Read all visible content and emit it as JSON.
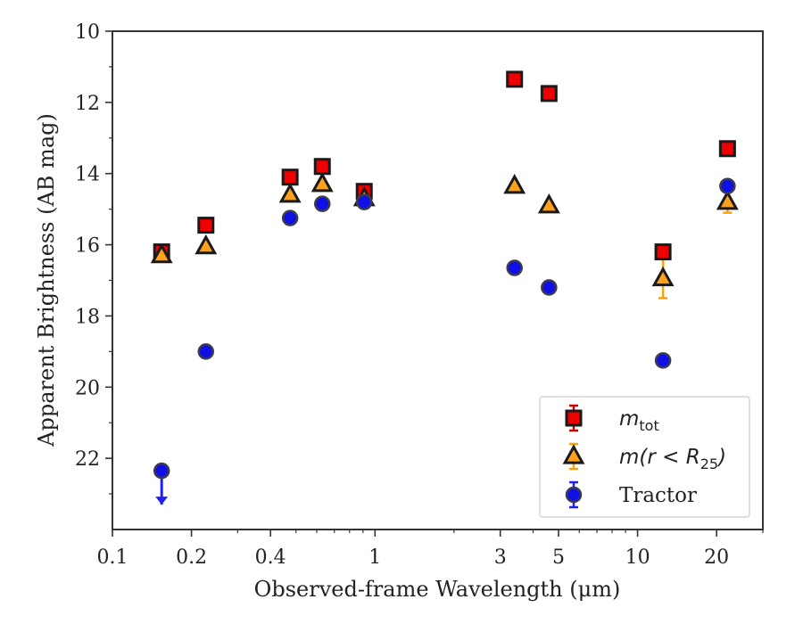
{
  "chart_data": {
    "type": "scatter",
    "title": "",
    "xlabel": "Observed-frame Wavelength (μm)",
    "ylabel": "Apparent Brightness (AB mag)",
    "x_scale": "log",
    "xlim": [
      0.1,
      30
    ],
    "ylim": [
      24,
      10
    ],
    "y_inverted": true,
    "grid": false,
    "legend_position": "lower-right",
    "x_ticks": [
      {
        "value": 0.1,
        "label": "0.1"
      },
      {
        "value": 0.2,
        "label": "0.2"
      },
      {
        "value": 0.4,
        "label": "0.4"
      },
      {
        "value": 1,
        "label": "1"
      },
      {
        "value": 3,
        "label": "3"
      },
      {
        "value": 5,
        "label": "5"
      },
      {
        "value": 10,
        "label": "10"
      },
      {
        "value": 20,
        "label": "20"
      }
    ],
    "y_ticks": [
      {
        "value": 10,
        "label": "10"
      },
      {
        "value": 12,
        "label": "12"
      },
      {
        "value": 14,
        "label": "14"
      },
      {
        "value": 16,
        "label": "16"
      },
      {
        "value": 18,
        "label": "18"
      },
      {
        "value": 20,
        "label": "20"
      },
      {
        "value": 22,
        "label": "22"
      }
    ],
    "series": [
      {
        "name": "m_tot",
        "legend_label": "m",
        "legend_sub": "tot",
        "marker": "square",
        "fill_color": "#ee0000",
        "edge_color": "#1a1a1a",
        "errorbar_color": "#d00000",
        "points": [
          {
            "x": 0.154,
            "y": 16.2,
            "err": 0.08
          },
          {
            "x": 0.227,
            "y": 15.45,
            "err": 0.03
          },
          {
            "x": 0.475,
            "y": 14.1,
            "err": 0.03
          },
          {
            "x": 0.63,
            "y": 13.8,
            "err": 0.03
          },
          {
            "x": 0.91,
            "y": 14.5,
            "err": 0.03
          },
          {
            "x": 3.4,
            "y": 11.35,
            "err": 0.03
          },
          {
            "x": 4.6,
            "y": 11.75,
            "err": 0.03
          },
          {
            "x": 12.5,
            "y": 16.2,
            "err": 0.05
          },
          {
            "x": 22.0,
            "y": 13.3,
            "err": 0.05
          }
        ]
      },
      {
        "name": "m(r < R_25)",
        "legend_label": "m(r < R",
        "legend_sub": "25",
        "legend_tail": ")",
        "marker": "triangle",
        "fill_color": "#ff9f1c",
        "edge_color": "#1a1a1a",
        "errorbar_color": "#f5a30a",
        "points": [
          {
            "x": 0.154,
            "y": 16.3,
            "err": 0.05
          },
          {
            "x": 0.227,
            "y": 16.05,
            "err": 0.03
          },
          {
            "x": 0.475,
            "y": 14.6,
            "err": 0.03
          },
          {
            "x": 0.63,
            "y": 14.3,
            "err": 0.03
          },
          {
            "x": 0.91,
            "y": 14.7,
            "err": 0.03
          },
          {
            "x": 3.4,
            "y": 14.35,
            "err": 0.03
          },
          {
            "x": 4.6,
            "y": 14.9,
            "err": 0.03
          },
          {
            "x": 12.5,
            "y": 16.95,
            "err": 0.55
          },
          {
            "x": 22.0,
            "y": 14.8,
            "err": 0.3
          }
        ]
      },
      {
        "name": "Tractor",
        "legend_label": "Tractor",
        "marker": "circle",
        "fill_color": "#1010e6",
        "edge_color": "#3c3c4a",
        "errorbar_color": "#2020ee",
        "points": [
          {
            "x": 0.154,
            "y": 22.35,
            "err": 0,
            "upper_limit": true
          },
          {
            "x": 0.227,
            "y": 19.0,
            "err": 0.02
          },
          {
            "x": 0.475,
            "y": 15.25,
            "err": 0.02
          },
          {
            "x": 0.63,
            "y": 14.85,
            "err": 0.02
          },
          {
            "x": 0.91,
            "y": 14.8,
            "err": 0.02
          },
          {
            "x": 3.4,
            "y": 16.65,
            "err": 0.02
          },
          {
            "x": 4.6,
            "y": 17.2,
            "err": 0.02
          },
          {
            "x": 12.5,
            "y": 19.25,
            "err": 0.02
          },
          {
            "x": 22.0,
            "y": 14.35,
            "err": 0.02
          }
        ]
      }
    ]
  }
}
